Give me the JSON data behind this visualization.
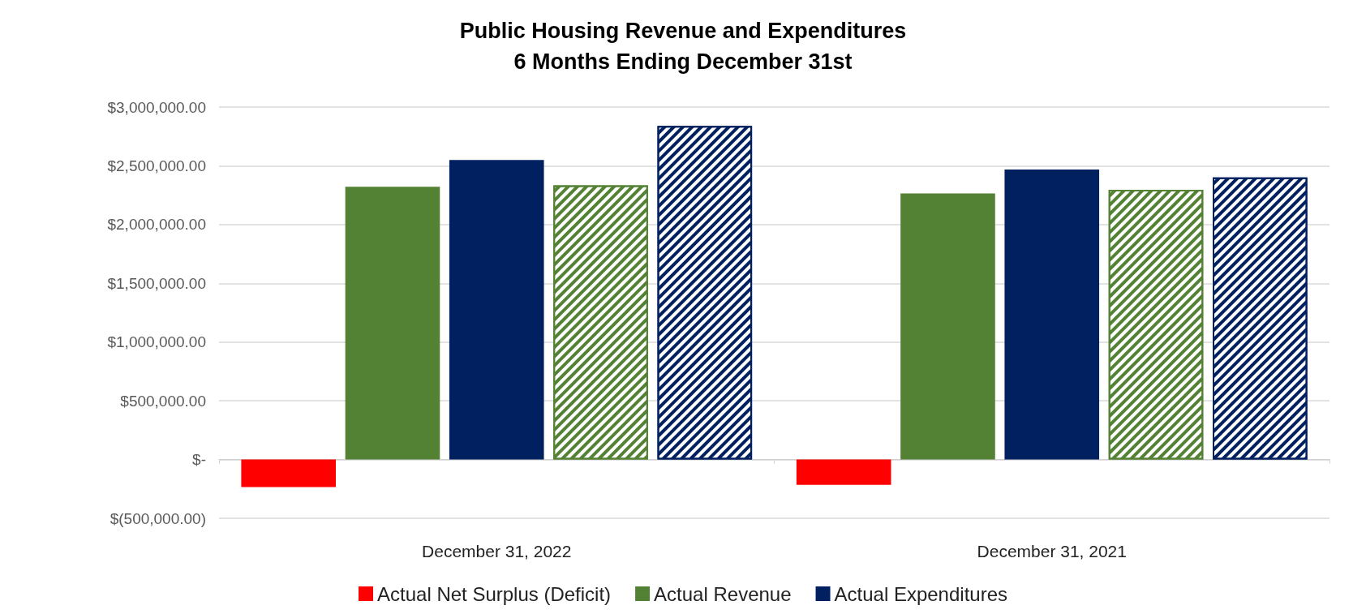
{
  "chart_data": {
    "type": "bar",
    "title": "Public Housing Revenue and Expenditures\n6 Months Ending December 31st",
    "categories": [
      "December 31, 2022",
      "December 31, 2021"
    ],
    "series": [
      {
        "name": "Actual Net Surplus (Deficit)",
        "color": "#ff0000",
        "values": [
          -235000,
          -216000
        ]
      },
      {
        "name": "Actual Revenue",
        "color": "#548235",
        "values": [
          2321000,
          2265000
        ]
      },
      {
        "name": "Actual Expenditures",
        "color": "#002060",
        "values": [
          2549000,
          2469000
        ]
      },
      {
        "color": "#548235",
        "values": [
          2333000,
          2296000
        ]
      },
      {
        "color": "#002060",
        "values": [
          2840000,
          2401000
        ]
      }
    ],
    "ylim": [
      -500000,
      3000000
    ],
    "yticks": [
      {
        "value": -500000,
        "label": "$(500,000.00)"
      },
      {
        "value": 0,
        "label": "$-"
      },
      {
        "value": 500000,
        "label": "$500,000.00"
      },
      {
        "value": 1000000,
        "label": "$1,000,000.00"
      },
      {
        "value": 1500000,
        "label": "$1,500,000.00"
      },
      {
        "value": 2000000,
        "label": "$2,000,000.00"
      },
      {
        "value": 2500000,
        "label": "$2,500,000.00"
      },
      {
        "value": 3000000,
        "label": "$3,000,000.00"
      }
    ],
    "grid": "y",
    "legend": "bottom"
  }
}
